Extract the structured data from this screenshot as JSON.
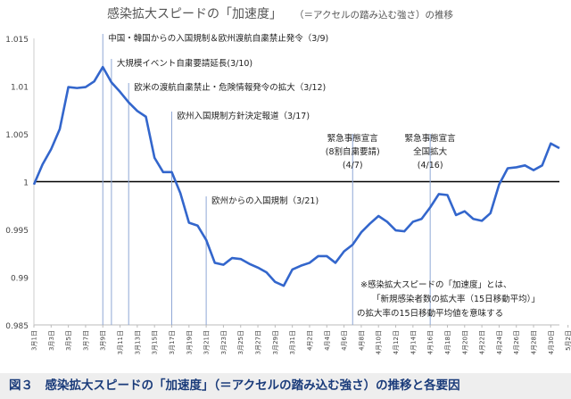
{
  "chart_data": {
    "type": "line",
    "title": "感染拡大スピードの「加速度」",
    "subtitle": "（＝アクセルの踏み込む強さ）の推移",
    "ylim": [
      0.985,
      1.015
    ],
    "y_ticks": [
      "1.015",
      "1.01",
      "1.005",
      "1",
      "0.995",
      "0.99",
      "0.985"
    ],
    "y_tick_values": [
      1.015,
      1.01,
      1.005,
      1.0,
      0.995,
      0.99,
      0.985
    ],
    "x_tick_labels": [
      "3月1日",
      "3月3日",
      "3月5日",
      "3月7日",
      "3月9日",
      "3月11日",
      "3月13日",
      "3月15日",
      "3月17日",
      "3月19日",
      "3月21日",
      "3月23日",
      "3月25日",
      "3月27日",
      "3月29日",
      "3月31日",
      "4月2日",
      "4月4日",
      "4月6日",
      "4月8日",
      "4月10日",
      "4月12日",
      "4月14日",
      "4月16日",
      "4月18日",
      "4月20日",
      "4月22日",
      "4月24日",
      "4月26日",
      "4月28日",
      "4月30日",
      "5月2日"
    ],
    "series": [
      {
        "values": [
          0.9997,
          1.0018,
          1.0034,
          1.0055,
          1.0099,
          1.0098,
          1.0099,
          1.0105,
          1.012,
          1.0104,
          1.0094,
          1.0083,
          1.0074,
          1.0068,
          1.0025,
          1.001,
          1.001,
          0.9988,
          0.9957,
          0.9954,
          0.9939,
          0.9915,
          0.9913,
          0.992,
          0.9919,
          0.9914,
          0.991,
          0.9905,
          0.9895,
          0.9891,
          0.9908,
          0.9912,
          0.9915,
          0.9922,
          0.9922,
          0.9915,
          0.9927,
          0.9934,
          0.9947,
          0.9956,
          0.9964,
          0.9958,
          0.9949,
          0.9948,
          0.9958,
          0.9961,
          0.9973,
          0.9987,
          0.9986,
          0.9965,
          0.9969,
          0.9961,
          0.9959,
          0.9967,
          0.9997,
          1.0014,
          1.0015,
          1.0017,
          1.0012,
          1.0017,
          1.004,
          1.0035
        ]
      }
    ],
    "reference_line": 1.0,
    "annotations": [
      {
        "date_index": 8,
        "text": "中国・韓国からの入国規制＆欧州渡航自粛禁止発令（3/9)"
      },
      {
        "date_index": 9,
        "text": "大規模イベント自粛要請延長(3/10)"
      },
      {
        "date_index": 11,
        "text": "欧米の渡航自粛禁止・危険情報発令の拡大（3/12)"
      },
      {
        "date_index": 16,
        "text": "欧州入国規制方針決定報道（3/17)"
      },
      {
        "date_index": 20,
        "text": "欧州からの入国規制（3/21)"
      },
      {
        "date_index": 37,
        "lines": [
          "緊急事態宣言",
          "(8割自粛要請)",
          "(4/7)"
        ]
      },
      {
        "date_index": 46,
        "lines": [
          "緊急事態宣言",
          "全国拡大",
          "(4/16)"
        ]
      }
    ],
    "note": [
      "※感染拡大スピードの「加速度」とは、",
      "「新規感染者数の拡大率（15日移動平均）」",
      "の拡大率の15日移動平均値を意味する"
    ]
  },
  "caption": "図３　感染拡大スピードの「加速度」（＝アクセルの踏み込む強さ）の推移と各要因"
}
